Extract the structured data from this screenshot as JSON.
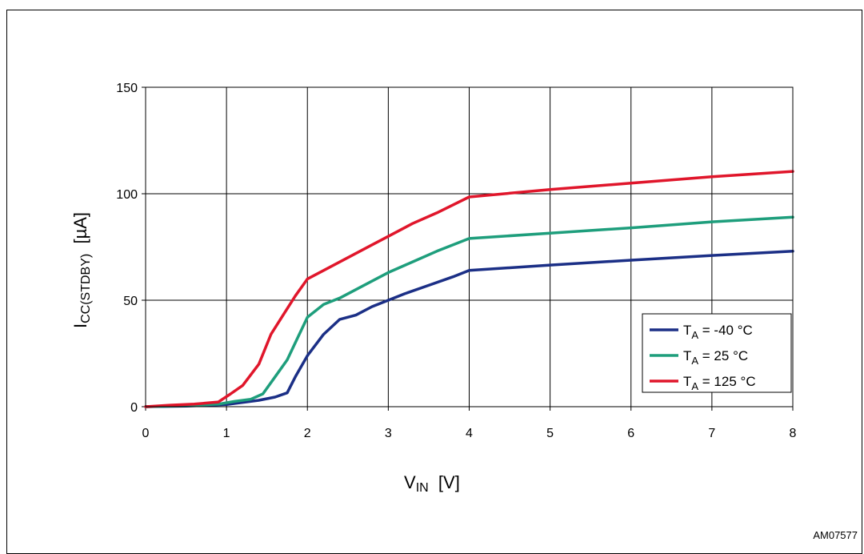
{
  "caption": "",
  "ref_code": "AM07577",
  "chart_data": {
    "type": "line",
    "xlabel": {
      "main": "V",
      "sub": "IN",
      "rest": "  [V]"
    },
    "ylabel": {
      "main": "I",
      "sub": "CC(STDBY)",
      "rest": "  [µA]"
    },
    "xlim": [
      0,
      8
    ],
    "ylim": [
      0,
      150
    ],
    "x_ticks": [
      0,
      1,
      2,
      3,
      4,
      5,
      6,
      7,
      8
    ],
    "y_ticks": [
      0,
      50,
      100,
      150
    ],
    "grid": true,
    "legend_position": "lower-right",
    "series": [
      {
        "name": "TA = -40 °C",
        "legend": {
          "main": "T",
          "sub": "A",
          "rest": " = -40 °C"
        },
        "color": "#1b2f86",
        "points": [
          [
            0,
            0
          ],
          [
            0.5,
            0.3
          ],
          [
            1.0,
            1.0
          ],
          [
            1.2,
            2.0
          ],
          [
            1.4,
            3.0
          ],
          [
            1.6,
            4.5
          ],
          [
            1.75,
            6.5
          ],
          [
            1.85,
            14
          ],
          [
            2.0,
            24
          ],
          [
            2.2,
            34
          ],
          [
            2.4,
            41
          ],
          [
            2.6,
            43
          ],
          [
            2.8,
            47
          ],
          [
            3.0,
            50
          ],
          [
            3.2,
            53
          ],
          [
            3.5,
            57
          ],
          [
            3.8,
            61
          ],
          [
            4.0,
            64
          ],
          [
            5.0,
            66.5
          ],
          [
            6.0,
            68.8
          ],
          [
            7.0,
            71
          ],
          [
            8.0,
            73
          ]
        ]
      },
      {
        "name": "TA = 25 °C",
        "legend": {
          "main": "T",
          "sub": "A",
          "rest": " = 25 °C"
        },
        "color": "#1e9e7c",
        "points": [
          [
            0,
            0
          ],
          [
            0.5,
            0.5
          ],
          [
            0.9,
            1.2
          ],
          [
            1.1,
            2.5
          ],
          [
            1.3,
            3.5
          ],
          [
            1.45,
            6
          ],
          [
            1.6,
            14
          ],
          [
            1.75,
            22
          ],
          [
            1.9,
            34
          ],
          [
            2.0,
            42
          ],
          [
            2.2,
            48
          ],
          [
            2.4,
            51
          ],
          [
            2.6,
            55
          ],
          [
            2.8,
            59
          ],
          [
            3.0,
            63
          ],
          [
            3.3,
            68
          ],
          [
            3.6,
            73
          ],
          [
            4.0,
            79
          ],
          [
            5.0,
            81.5
          ],
          [
            6.0,
            84
          ],
          [
            7.0,
            86.8
          ],
          [
            8.0,
            89
          ]
        ]
      },
      {
        "name": "TA = 125 °C",
        "legend": {
          "main": "T",
          "sub": "A",
          "rest": " = 125 °C"
        },
        "color": "#e0162b",
        "points": [
          [
            0,
            0
          ],
          [
            0.3,
            0.7
          ],
          [
            0.6,
            1.2
          ],
          [
            0.9,
            2.2
          ],
          [
            1.05,
            6
          ],
          [
            1.2,
            10
          ],
          [
            1.4,
            20
          ],
          [
            1.55,
            34
          ],
          [
            1.7,
            43
          ],
          [
            1.85,
            52
          ],
          [
            2.0,
            60
          ],
          [
            2.2,
            64
          ],
          [
            2.5,
            70
          ],
          [
            2.8,
            76
          ],
          [
            3.0,
            80
          ],
          [
            3.3,
            86
          ],
          [
            3.6,
            91
          ],
          [
            4.0,
            98.5
          ],
          [
            5.0,
            102
          ],
          [
            6.0,
            105
          ],
          [
            7.0,
            108
          ],
          [
            8.0,
            110.5
          ]
        ]
      }
    ]
  }
}
